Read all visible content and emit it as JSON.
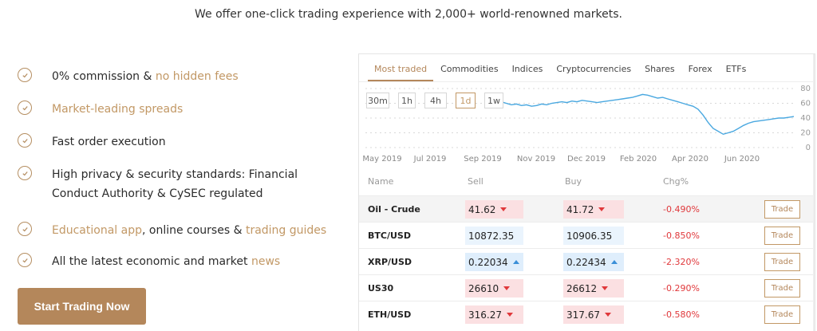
{
  "headline": "We offer one-click trading experience with 2,000+ world-renowned markets.",
  "features": [
    {
      "parts": [
        {
          "t": "0% commission & ",
          "hl": false
        },
        {
          "t": "no hidden fees",
          "hl": true
        }
      ]
    },
    {
      "parts": [
        {
          "t": "Market-leading spreads",
          "hl": true
        }
      ]
    },
    {
      "parts": [
        {
          "t": "Fast order execution",
          "hl": false
        }
      ]
    },
    {
      "parts": [
        {
          "t": "High privacy & security standards: Financial Conduct Authority & CySEC regulated",
          "hl": false
        }
      ]
    },
    {
      "parts": [
        {
          "t": "Educational app",
          "hl": true
        },
        {
          "t": ", online courses & ",
          "hl": false
        },
        {
          "t": "trading guides",
          "hl": true
        }
      ]
    },
    {
      "parts": [
        {
          "t": "All the latest economic and market ",
          "hl": false
        },
        {
          "t": "news",
          "hl": true
        }
      ]
    }
  ],
  "cta_label": "Start Trading Now",
  "tabs": [
    "Most traded",
    "Commodities",
    "Indices",
    "Cryptocurrencies",
    "Shares",
    "Forex",
    "ETFs"
  ],
  "active_tab": "Most traded",
  "ranges": [
    "30m",
    "1h",
    "4h",
    "1d",
    "1w"
  ],
  "active_range": "1d",
  "chart_data": {
    "type": "line",
    "x_ticks": [
      "May 2019",
      "Jul 2019",
      "Sep 2019",
      "Nov 2019",
      "Dec 2019",
      "Feb 2020",
      "Apr 2020",
      "Jun 2020"
    ],
    "y_ticks": [
      80,
      60,
      40,
      20,
      0
    ],
    "ylim": [
      0,
      80
    ],
    "grid": true,
    "series": [
      {
        "color": "#4aa8e0",
        "values": [
          63,
          62,
          60,
          58,
          59,
          57,
          58,
          56,
          57,
          59,
          58,
          60,
          61,
          62,
          61,
          63,
          62,
          64,
          63,
          62,
          61,
          62,
          63,
          64,
          65,
          66,
          67,
          68,
          70,
          72,
          71,
          69,
          67,
          68,
          66,
          64,
          62,
          60,
          58,
          56,
          52,
          44,
          34,
          26,
          22,
          18,
          20,
          22,
          26,
          30,
          33,
          35,
          36,
          37,
          38,
          39,
          40,
          40,
          41,
          42
        ]
      }
    ]
  },
  "columns": [
    "Name",
    "Sell",
    "Buy",
    "Chg%"
  ],
  "trade_label": "Trade",
  "rows": [
    {
      "name": "Oil - Crude",
      "sell": "41.62",
      "buy": "41.72",
      "dir": "down",
      "chg": "-0.490%"
    },
    {
      "name": "BTC/USD",
      "sell": "10872.35",
      "buy": "10906.35",
      "dir": "none",
      "chg": "-0.850%"
    },
    {
      "name": "XRP/USD",
      "sell": "0.22034",
      "buy": "0.22434",
      "dir": "up",
      "chg": "-2.320%"
    },
    {
      "name": "US30",
      "sell": "26610",
      "buy": "26612",
      "dir": "down",
      "chg": "-0.290%"
    },
    {
      "name": "ETH/USD",
      "sell": "316.27",
      "buy": "317.67",
      "dir": "down",
      "chg": "-0.580%"
    }
  ]
}
